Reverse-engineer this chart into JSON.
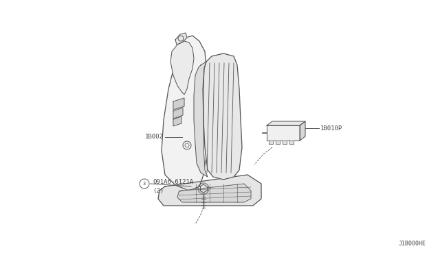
{
  "background_color": "#ffffff",
  "fig_width": 6.4,
  "fig_height": 3.72,
  "dpi": 100,
  "diagram_code": "J1B000HE",
  "line_color": "#555555",
  "text_color": "#444444",
  "font_size": 6.5,
  "label_16002": "1B002",
  "label_16010P": "1B010P",
  "label_bolt": "091A6-6121A",
  "label_bolt2": "(2)"
}
